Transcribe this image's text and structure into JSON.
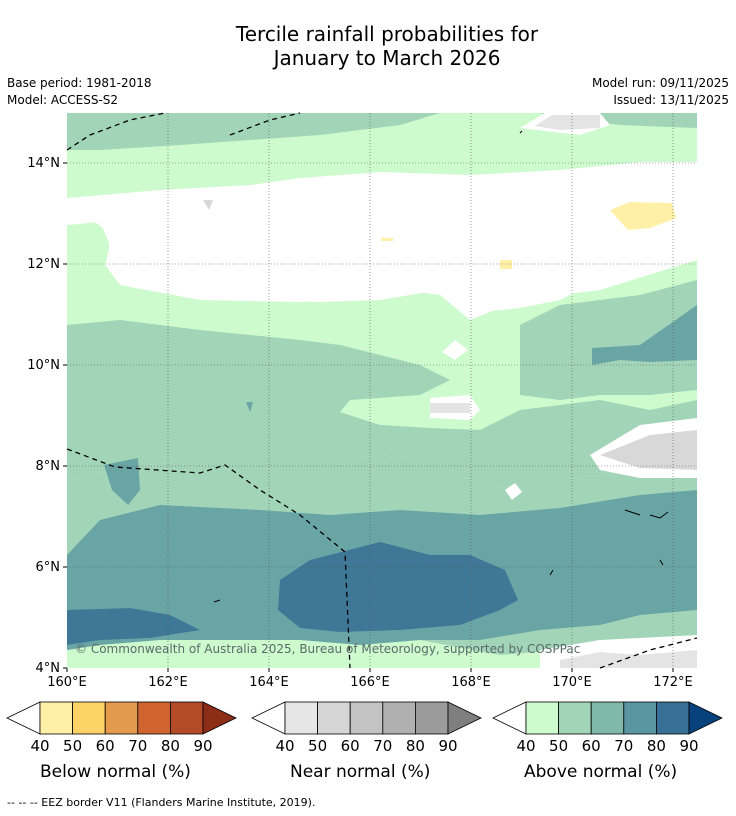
{
  "title_line1": "Tercile rainfall probabilities for",
  "title_line2": "January to March 2026",
  "base_period": "Base period: 1981-2018",
  "model": "Model: ACCESS-S2",
  "model_run": "Model run: 09/11/2025",
  "issued": "Issued: 13/11/2025",
  "copyright": "© Commonwealth of Australia 2025, Bureau of Meteorology, supported by COSPPac",
  "map": {
    "lat_ticks": [
      "4°N",
      "6°N",
      "8°N",
      "10°N",
      "12°N",
      "14°N"
    ],
    "lon_ticks": [
      "160°E",
      "162°E",
      "164°E",
      "166°E",
      "168°E",
      "170°E",
      "172°E"
    ]
  },
  "legends": [
    {
      "name": "below",
      "label": "Below normal (%)",
      "ticks": [
        "40",
        "50",
        "60",
        "70",
        "80",
        "90"
      ],
      "colors": [
        "#fff0a8",
        "#fdd267",
        "#e49a4c",
        "#d0642f",
        "#b34a28",
        "#8c2d18"
      ]
    },
    {
      "name": "near",
      "label": "Near normal (%)",
      "ticks": [
        "40",
        "50",
        "60",
        "70",
        "80",
        "90"
      ],
      "colors": [
        "#e6e6e6",
        "#d5d5d5",
        "#c3c3c3",
        "#b0b0b0",
        "#9b9b9b",
        "#7f7f7f"
      ]
    },
    {
      "name": "above",
      "label": "Above normal (%)",
      "ticks": [
        "40",
        "50",
        "60",
        "70",
        "80",
        "90"
      ],
      "colors": [
        "#cdfbcd",
        "#a2d4b8",
        "#80b9a8",
        "#5a95a4",
        "#386f96",
        "#08427c"
      ]
    }
  ],
  "footnote": "-- -- -- EEZ border V11 (Flanders Marine Institute, 2019)."
}
